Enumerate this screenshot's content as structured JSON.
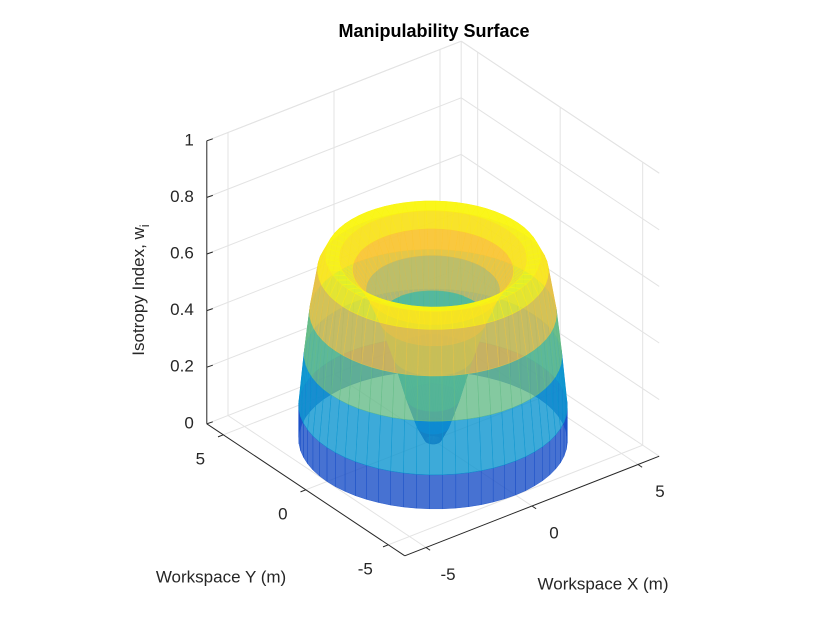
{
  "chart_data": {
    "type": "surface",
    "title": "Manipulability Surface",
    "xlabel": "Workspace X (m)",
    "ylabel": "Workspace Y (m)",
    "zlabel": "Isotropy Index, w",
    "zlabel_subscript": "i",
    "xlim": [
      -6,
      6
    ],
    "ylim": [
      -6,
      6
    ],
    "zlim": [
      0,
      1
    ],
    "xticks": [
      -5,
      0,
      5
    ],
    "yticks": [
      -5,
      0,
      5
    ],
    "zticks": [
      0,
      0.2,
      0.4,
      0.6,
      0.8,
      1
    ],
    "grid": true,
    "surface": {
      "r": [
        0.3,
        0.6,
        1,
        1.5,
        2,
        2.5,
        3,
        3.5,
        4,
        4.3,
        4.6,
        4.8,
        5,
        5
      ],
      "z": [
        0,
        0.05,
        0.15,
        0.3,
        0.43,
        0.53,
        0.6,
        0.64,
        0.65,
        0.6,
        0.45,
        0.3,
        0.12,
        0
      ]
    },
    "colormap": [
      "#352a87",
      "#0f5cdd",
      "#1481d6",
      "#06a4ca",
      "#2eb7a4",
      "#87bf77",
      "#d1bb59",
      "#fec832",
      "#f9fb0e"
    ],
    "face_alpha": 0.8
  }
}
